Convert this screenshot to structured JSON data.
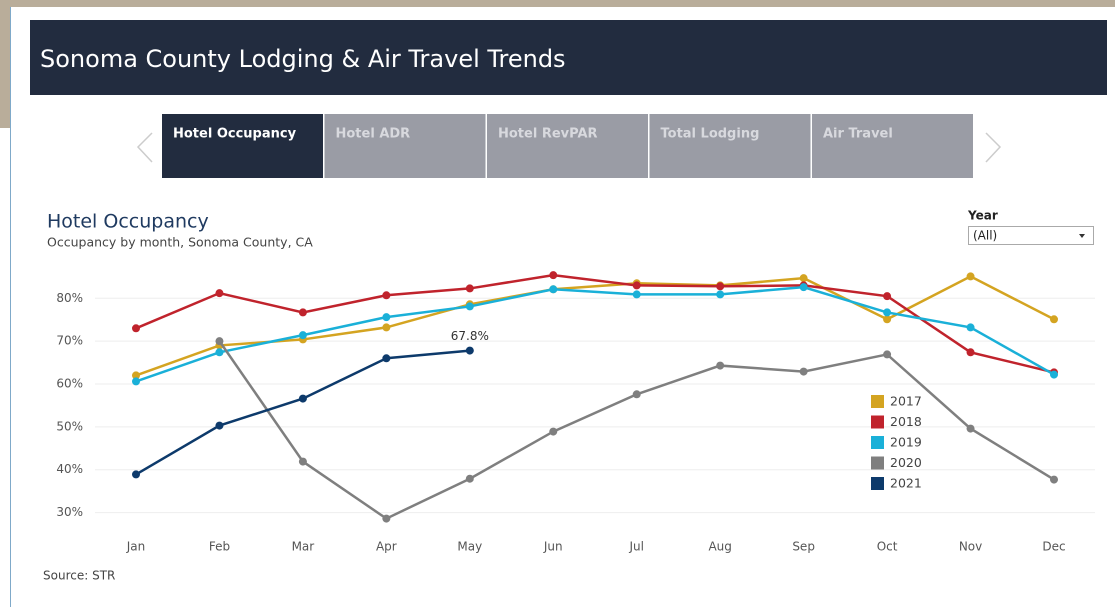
{
  "header": {
    "title": "Sonoma County Lodging & Air Travel Trends"
  },
  "tabs": [
    "Hotel Occupancy",
    "Hotel ADR",
    "Hotel RevPAR",
    "Total Lodging",
    "Air Travel"
  ],
  "filter": {
    "label": "Year",
    "value": "(All)"
  },
  "source": "Source: STR",
  "chart_data": {
    "type": "line",
    "title": "Hotel Occupancy",
    "subtitle": "Occupancy by month, Sonoma County, CA",
    "categories": [
      "Jan",
      "Feb",
      "Mar",
      "Apr",
      "May",
      "Jun",
      "Jul",
      "Aug",
      "Sep",
      "Oct",
      "Nov",
      "Dec"
    ],
    "ylim": [
      25,
      88
    ],
    "yticks": [
      {
        "value": 30,
        "label": "30%"
      },
      {
        "value": 40,
        "label": "40%"
      },
      {
        "value": 50,
        "label": "50%"
      },
      {
        "value": 60,
        "label": "60%"
      },
      {
        "value": 70,
        "label": "70%"
      },
      {
        "value": 80,
        "label": "80%"
      }
    ],
    "grid": true,
    "legend": "right",
    "series": [
      {
        "name": "2017",
        "color": "#d4a421",
        "values": [
          62.0,
          69.0,
          70.4,
          73.2,
          78.6,
          82.1,
          83.5,
          83.0,
          84.7,
          75.1,
          85.1,
          75.1
        ]
      },
      {
        "name": "2018",
        "color": "#c0232c",
        "values": [
          73.0,
          81.2,
          76.7,
          80.7,
          82.3,
          85.4,
          83.0,
          82.8,
          83.0,
          80.5,
          67.4,
          62.7
        ]
      },
      {
        "name": "2019",
        "color": "#1ab0d8",
        "values": [
          60.6,
          67.4,
          71.4,
          75.6,
          78.1,
          82.1,
          80.9,
          80.9,
          82.6,
          76.7,
          73.2,
          62.2
        ]
      },
      {
        "name": "2020",
        "color": "#7f7f7f",
        "values": [
          null,
          70.0,
          41.9,
          28.6,
          37.9,
          48.9,
          57.6,
          64.3,
          62.9,
          66.9,
          49.6,
          37.7
        ]
      },
      {
        "name": "2021",
        "color": "#0d3a6b",
        "values": [
          38.9,
          50.3,
          56.6,
          66.0,
          67.8,
          null,
          null,
          null,
          null,
          null,
          null,
          null
        ],
        "value_labels": [
          null,
          null,
          null,
          null,
          "67.8%",
          null,
          null,
          null,
          null,
          null,
          null,
          null
        ]
      }
    ]
  }
}
